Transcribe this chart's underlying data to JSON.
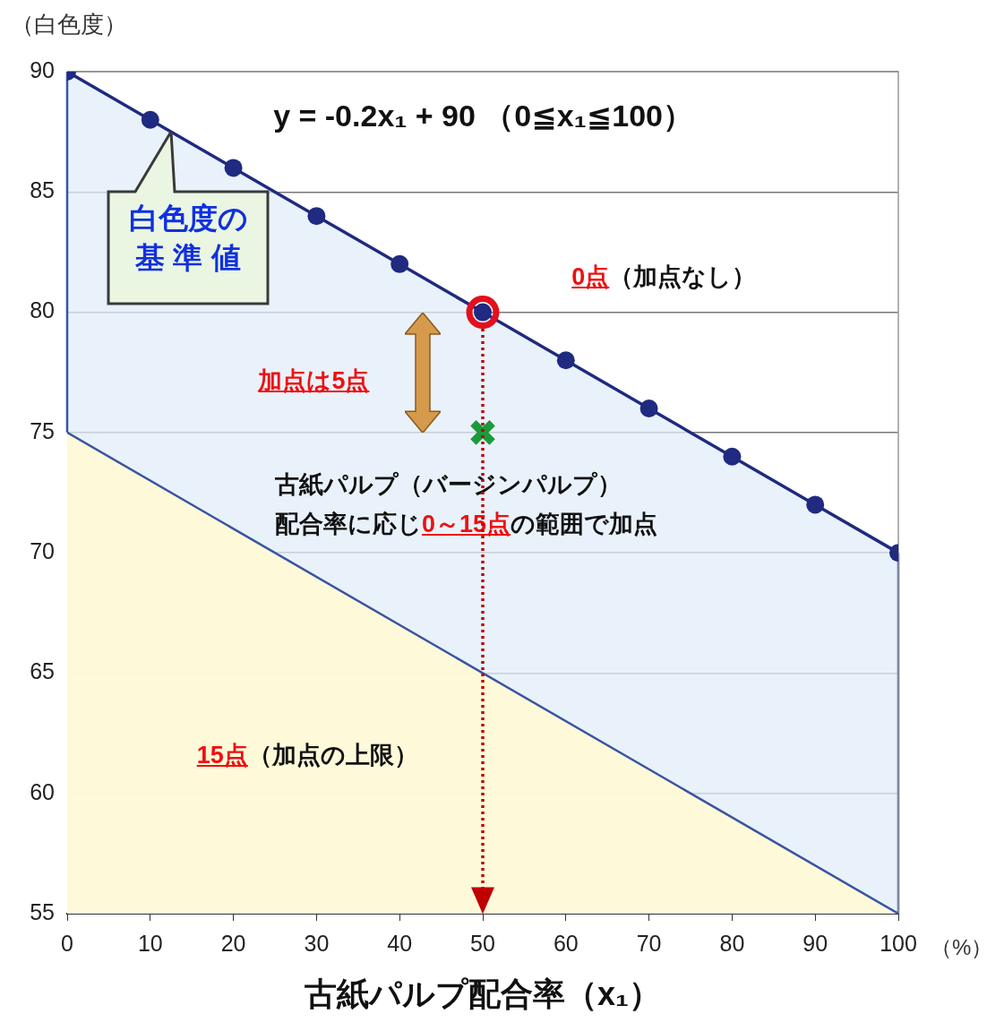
{
  "chart_data": {
    "type": "line",
    "xlabel": "古紙パルプ配合率（x₁）",
    "ylabel": "（白色度）",
    "x": [
      0,
      10,
      20,
      30,
      40,
      50,
      60,
      70,
      80,
      90,
      100
    ],
    "series": [
      {
        "type": "area",
        "color": "#1f2a80",
        "marker": "circle",
        "values": [
          90,
          88,
          86,
          84,
          82,
          80,
          78,
          76,
          74,
          72,
          70
        ]
      },
      {
        "type": "area",
        "color": "#3a54a0",
        "marker": "none",
        "x": [
          0,
          100
        ],
        "values": [
          75,
          55
        ]
      },
      {
        "type": "scatter",
        "color": "#e3101c",
        "marker": "circle",
        "x": [
          50
        ],
        "values": [
          80
        ]
      },
      {
        "type": "scatter",
        "color": "#1a9a3a",
        "marker": "cross",
        "x": [
          50
        ],
        "values": [
          75
        ]
      }
    ],
    "xlim": [
      0,
      100
    ],
    "xticks": [
      0,
      10,
      20,
      30,
      40,
      50,
      60,
      70,
      80,
      90,
      100
    ],
    "ylim": [
      55,
      90
    ],
    "yticks": [
      55,
      60,
      65,
      70,
      75,
      80,
      85,
      90
    ],
    "grid": "y",
    "legend": false,
    "ref_lines": [
      {
        "axis": "x",
        "value": 50,
        "color": "#c00000",
        "line_style": "dotted"
      }
    ],
    "annotations": [
      "y = -0.2x₁ + 90 （0≦x₁≦100）",
      {
        "text": "白色度の基 準 値",
        "x": 12.5,
        "y": 87.5
      },
      "0点",
      "（加点なし）",
      "加点は5点",
      "古紙パルプ（バージンパルプ）",
      "配合率に応じ",
      "0～15点",
      "の範囲で加点",
      "15点",
      "（加点の上限）",
      "（%）"
    ]
  }
}
